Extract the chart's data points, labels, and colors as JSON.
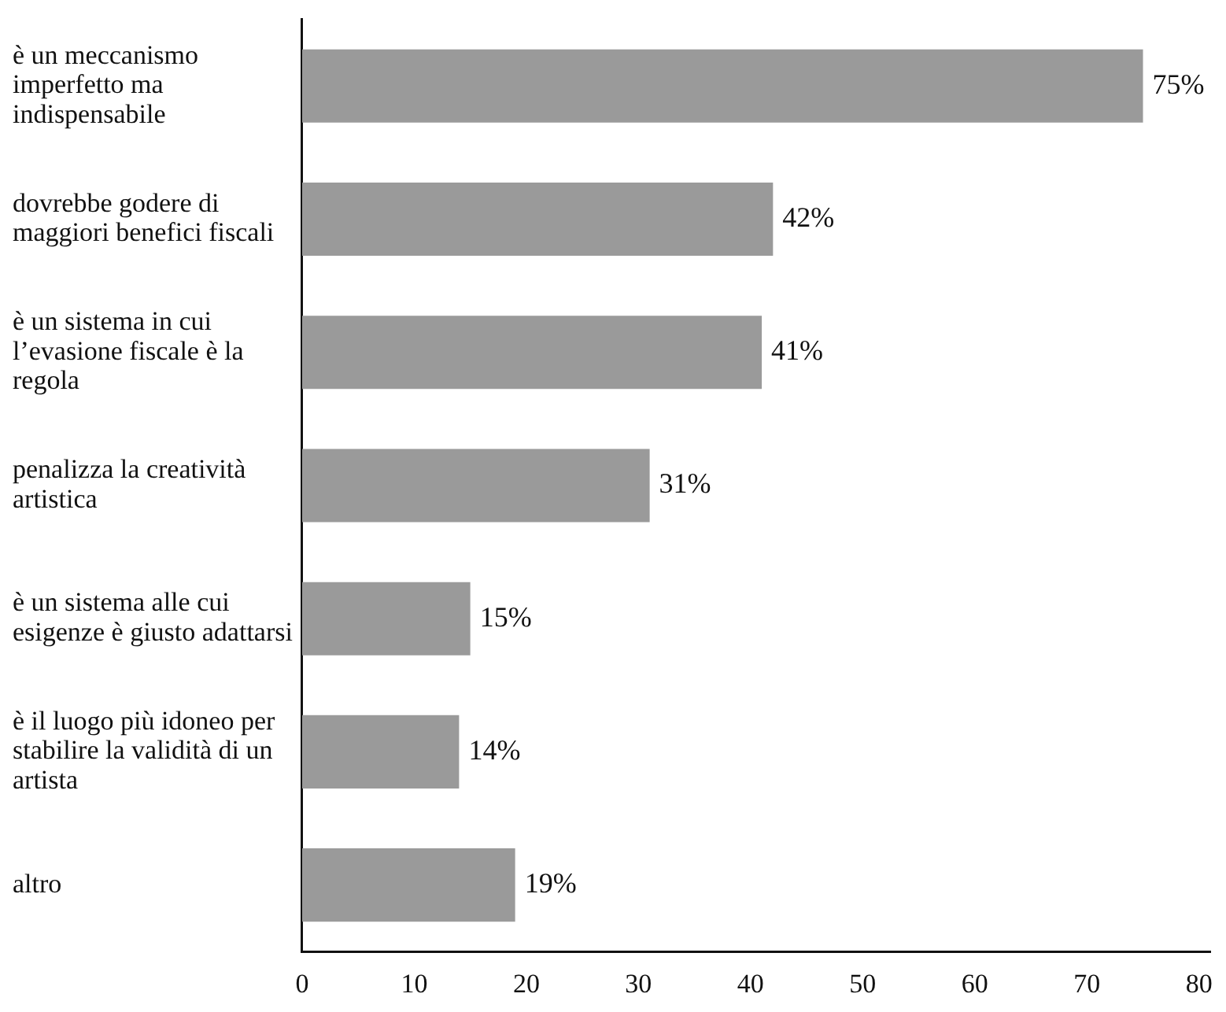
{
  "chart_data": {
    "type": "bar",
    "orientation": "horizontal",
    "categories": [
      "è un meccanismo imperfetto ma indispensabile",
      "dovrebbe godere di maggiori benefici fiscali",
      "è un sistema in cui l’evasione fiscale è la regola",
      "penalizza la creatività artistica",
      "è un sistema alle cui esigenze è giusto adattarsi",
      "è il luogo più idoneo per stabilire la validità di un artista",
      "altro"
    ],
    "values": [
      75,
      42,
      41,
      31,
      15,
      14,
      19
    ],
    "value_labels": [
      "75%",
      "42%",
      "41%",
      "31%",
      "15%",
      "14%",
      "19%"
    ],
    "color": "#9a9a9a",
    "xlim": [
      0,
      81
    ],
    "xticks": [
      0,
      10,
      20,
      30,
      40,
      50,
      60,
      70,
      80
    ],
    "grid": false,
    "legend": false
  }
}
